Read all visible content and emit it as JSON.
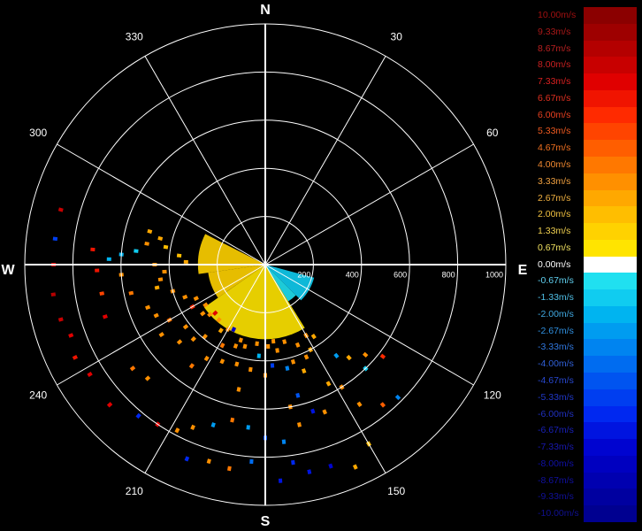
{
  "chart_data": {
    "type": "polar-radar-velocity",
    "compass": {
      "north": "N",
      "east": "E",
      "south": "S",
      "west": "W"
    },
    "angle_ticks": [
      "30",
      "60",
      "120",
      "150",
      "210",
      "240",
      "300",
      "330"
    ],
    "angle_tick_degrees": [
      30,
      60,
      120,
      150,
      210,
      240,
      300,
      330
    ],
    "range_ticks": [
      "200",
      "400",
      "600",
      "800",
      "1000"
    ],
    "range_tick_values": [
      200,
      400,
      600,
      800,
      1000
    ],
    "range_max": 1000,
    "grid": true,
    "legend_placement": "right",
    "colorbar": {
      "labels": [
        "10.00m/s",
        "9.33m/s",
        "8.67m/s",
        "8.00m/s",
        "7.33m/s",
        "6.67m/s",
        "6.00m/s",
        "5.33m/s",
        "4.67m/s",
        "4.00m/s",
        "3.33m/s",
        "2.67m/s",
        "2.00m/s",
        "1.33m/s",
        "0.67m/s",
        "0.00m/s",
        "-0.67m/s",
        "-1.33m/s",
        "-2.00m/s",
        "-2.67m/s",
        "-3.33m/s",
        "-4.00m/s",
        "-4.67m/s",
        "-5.33m/s",
        "-6.00m/s",
        "-6.67m/s",
        "-7.33m/s",
        "-8.00m/s",
        "-8.67m/s",
        "-9.33m/s",
        "-10.00m/s"
      ],
      "values": [
        10,
        9.33,
        8.67,
        8,
        7.33,
        6.67,
        6,
        5.33,
        4.67,
        4,
        3.33,
        2.67,
        2,
        1.33,
        0.67,
        0,
        -0.67,
        -1.33,
        -2,
        -2.67,
        -3.33,
        -4,
        -4.67,
        -5.33,
        -6,
        -6.67,
        -7.33,
        -8,
        -8.67,
        -9.33,
        -10
      ],
      "colors": [
        "#8b0000",
        "#9e0000",
        "#b40000",
        "#c80000",
        "#e00000",
        "#f01400",
        "#ff2a00",
        "#ff4400",
        "#ff5e00",
        "#ff7800",
        "#ff9000",
        "#ffa800",
        "#ffbe00",
        "#ffd200",
        "#ffe400",
        "#ffffff",
        "#20e0f0",
        "#10ccf0",
        "#00b4f0",
        "#009cf0",
        "#0084f0",
        "#006cf0",
        "#0054f0",
        "#003ef0",
        "#0028f0",
        "#0014e0",
        "#0004d0",
        "#0000c0",
        "#0000b0",
        "#0000a0",
        "#000090"
      ],
      "label_colors": [
        "#a01010",
        "#a81818",
        "#b82020",
        "#c82020",
        "#d82020",
        "#e03020",
        "#e84020",
        "#f05a20",
        "#f07020",
        "#f08830",
        "#f0a040",
        "#f0b040",
        "#f0c040",
        "#f0d050",
        "#f0e060",
        "#ffffff",
        "#60d0f0",
        "#50c0e8",
        "#40a8e0",
        "#3090e0",
        "#3078e0",
        "#3060d8",
        "#2848d0",
        "#2038c8",
        "#2030c0",
        "#1820b8",
        "#1818b0",
        "#1010a8",
        "#1010a0",
        "#101098",
        "#101090"
      ]
    },
    "sectors": [
      {
        "az_start": 262,
        "az_end": 297,
        "r_inner": 0,
        "r_outer": 280,
        "value": 1.1
      },
      {
        "az_start": 235,
        "az_end": 262,
        "r_inner": 0,
        "r_outer": 240,
        "value": 1.2
      },
      {
        "az_start": 148,
        "az_end": 235,
        "r_inner": 0,
        "r_outer": 310,
        "value": 1.0
      },
      {
        "az_start": 105,
        "az_end": 135,
        "r_inner": 0,
        "r_outer": 210,
        "value": -1.3
      },
      {
        "az_start": 135,
        "az_end": 148,
        "r_inner": 0,
        "r_outer": 180,
        "value": -0.9
      }
    ],
    "cells": [
      {
        "az": 270,
        "r": 880,
        "value": 7.5
      },
      {
        "az": 277,
        "r": 880,
        "value": -5.2
      },
      {
        "az": 285,
        "r": 880,
        "value": 8.2
      },
      {
        "az": 262,
        "r": 890,
        "value": 8.5
      },
      {
        "az": 255,
        "r": 880,
        "value": 7.8
      },
      {
        "az": 250,
        "r": 860,
        "value": 7.2
      },
      {
        "az": 244,
        "r": 880,
        "value": 6.5
      },
      {
        "az": 238,
        "r": 860,
        "value": 7.0
      },
      {
        "az": 228,
        "r": 870,
        "value": 7.6
      },
      {
        "az": 275,
        "r": 720,
        "value": 6.8
      },
      {
        "az": 268,
        "r": 700,
        "value": 6.5
      },
      {
        "az": 260,
        "r": 690,
        "value": 5.5
      },
      {
        "az": 252,
        "r": 700,
        "value": 7.4
      },
      {
        "az": 272,
        "r": 650,
        "value": -2.2
      },
      {
        "az": 274,
        "r": 600,
        "value": -1.8
      },
      {
        "az": 266,
        "r": 600,
        "value": 3.0
      },
      {
        "az": 258,
        "r": 570,
        "value": 4.0
      },
      {
        "az": 250,
        "r": 520,
        "value": 3.5
      },
      {
        "az": 245,
        "r": 500,
        "value": 3.3
      },
      {
        "az": 240,
        "r": 460,
        "value": 3.8
      },
      {
        "az": 236,
        "r": 520,
        "value": 3.4
      },
      {
        "az": 232,
        "r": 420,
        "value": 3.5
      },
      {
        "az": 228,
        "r": 480,
        "value": 3.6
      },
      {
        "az": 224,
        "r": 430,
        "value": 3.2
      },
      {
        "az": 220,
        "r": 390,
        "value": 3.0
      },
      {
        "az": 216,
        "r": 520,
        "value": 3.7
      },
      {
        "az": 212,
        "r": 460,
        "value": 3.4
      },
      {
        "az": 208,
        "r": 380,
        "value": 3.9
      },
      {
        "az": 204,
        "r": 440,
        "value": 3.1
      },
      {
        "az": 200,
        "r": 360,
        "value": 3.5
      },
      {
        "az": 196,
        "r": 430,
        "value": 3.6
      },
      {
        "az": 192,
        "r": 530,
        "value": 3.4
      },
      {
        "az": 188,
        "r": 440,
        "value": 3.0
      },
      {
        "az": 184,
        "r": 380,
        "value": -2.0
      },
      {
        "az": 180,
        "r": 460,
        "value": 3.5
      },
      {
        "az": 176,
        "r": 420,
        "value": -5.5
      },
      {
        "az": 172,
        "r": 360,
        "value": 3.6
      },
      {
        "az": 168,
        "r": 440,
        "value": -3.6
      },
      {
        "az": 164,
        "r": 420,
        "value": 3.2
      },
      {
        "az": 160,
        "r": 470,
        "value": 2.6
      },
      {
        "az": 156,
        "r": 420,
        "value": 3.3
      },
      {
        "az": 152,
        "r": 400,
        "value": 2.8
      },
      {
        "az": 158,
        "r": 360,
        "value": 3.0
      },
      {
        "az": 150,
        "r": 340,
        "value": 3.3
      },
      {
        "az": 146,
        "r": 360,
        "value": 2.9
      },
      {
        "az": 152,
        "r": 560,
        "value": 2.4
      },
      {
        "az": 148,
        "r": 600,
        "value": 3.1
      },
      {
        "az": 142,
        "r": 480,
        "value": -2.5
      },
      {
        "az": 138,
        "r": 520,
        "value": 2.7
      },
      {
        "az": 146,
        "r": 700,
        "value": 3.3
      },
      {
        "az": 140,
        "r": 760,
        "value": 4.4
      },
      {
        "az": 135,
        "r": 780,
        "value": -3.3
      },
      {
        "az": 150,
        "r": 860,
        "value": 2.3
      },
      {
        "az": 156,
        "r": 920,
        "value": 2.6
      },
      {
        "az": 162,
        "r": 880,
        "value": -7.3
      },
      {
        "az": 168,
        "r": 880,
        "value": -6.7
      },
      {
        "az": 172,
        "r": 830,
        "value": -6.0
      },
      {
        "az": 176,
        "r": 900,
        "value": -6.8
      },
      {
        "az": 184,
        "r": 820,
        "value": -4.0
      },
      {
        "az": 190,
        "r": 860,
        "value": 4.0
      },
      {
        "az": 196,
        "r": 850,
        "value": 3.4
      },
      {
        "az": 202,
        "r": 870,
        "value": -6.0
      },
      {
        "az": 208,
        "r": 780,
        "value": 3.2
      },
      {
        "az": 214,
        "r": 800,
        "value": 7.2
      },
      {
        "az": 220,
        "r": 820,
        "value": -5.8
      },
      {
        "az": 226,
        "r": 680,
        "value": 3.5
      },
      {
        "az": 232,
        "r": 700,
        "value": 4.2
      },
      {
        "az": 186,
        "r": 680,
        "value": -3.0
      },
      {
        "az": 192,
        "r": 660,
        "value": 3.7
      },
      {
        "az": 198,
        "r": 700,
        "value": -2.6
      },
      {
        "az": 204,
        "r": 740,
        "value": 3.5
      },
      {
        "az": 180,
        "r": 720,
        "value": -4.7
      },
      {
        "az": 174,
        "r": 740,
        "value": -3.3
      },
      {
        "az": 168,
        "r": 680,
        "value": 3.4
      },
      {
        "az": 162,
        "r": 640,
        "value": -6.7
      },
      {
        "az": 166,
        "r": 560,
        "value": -4.5
      },
      {
        "az": 170,
        "r": 600,
        "value": 3.0
      },
      {
        "az": 158,
        "r": 660,
        "value": 3.2
      },
      {
        "az": 132,
        "r": 560,
        "value": 3.6
      },
      {
        "az": 128,
        "r": 620,
        "value": 6.0
      },
      {
        "az": 136,
        "r": 600,
        "value": -1.5
      },
      {
        "az": 262,
        "r": 440,
        "value": 3.4
      },
      {
        "az": 258,
        "r": 460,
        "value": 2.8
      },
      {
        "az": 254,
        "r": 400,
        "value": 3.1
      },
      {
        "az": 266,
        "r": 420,
        "value": 3.5
      },
      {
        "az": 270,
        "r": 460,
        "value": 3.2
      },
      {
        "az": 248,
        "r": 360,
        "value": 3.3
      },
      {
        "az": 244,
        "r": 320,
        "value": 3.6
      },
      {
        "az": 240,
        "r": 350,
        "value": 6.0
      },
      {
        "az": 236,
        "r": 300,
        "value": 3.4
      },
      {
        "az": 232,
        "r": 330,
        "value": 3.0
      },
      {
        "az": 228,
        "r": 310,
        "value": 3.5
      },
      {
        "az": 226,
        "r": 290,
        "value": 7.2
      },
      {
        "az": 220,
        "r": 300,
        "value": 3.3
      },
      {
        "az": 214,
        "r": 330,
        "value": 2.9
      },
      {
        "az": 210,
        "r": 310,
        "value": 3.5
      },
      {
        "az": 206,
        "r": 300,
        "value": -8.0
      },
      {
        "az": 198,
        "r": 330,
        "value": 3.2
      },
      {
        "az": 194,
        "r": 350,
        "value": 3.6
      },
      {
        "az": 186,
        "r": 330,
        "value": 3.0
      },
      {
        "az": 178,
        "r": 340,
        "value": 3.4
      },
      {
        "az": 174,
        "r": 320,
        "value": 3.5
      },
      {
        "az": 166,
        "r": 330,
        "value": 3.3
      },
      {
        "az": 272,
        "r": 330,
        "value": 2.7
      },
      {
        "az": 276,
        "r": 360,
        "value": 2.2
      },
      {
        "az": 280,
        "r": 420,
        "value": 2.0
      },
      {
        "az": 284,
        "r": 450,
        "value": 2.4
      },
      {
        "az": 276,
        "r": 540,
        "value": -1.5
      },
      {
        "az": 280,
        "r": 500,
        "value": 3.0
      },
      {
        "az": 286,
        "r": 500,
        "value": 2.6
      }
    ]
  }
}
